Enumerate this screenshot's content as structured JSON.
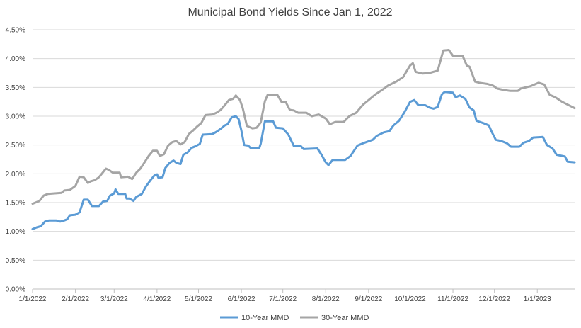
{
  "chart_data": {
    "type": "line",
    "title": "Municipal Bond Yields Since Jan 1, 2022",
    "xlabel": "",
    "ylabel": "",
    "x_ticks": [
      "1/1/2022",
      "2/1/2022",
      "3/1/2022",
      "4/1/2022",
      "5/1/2022",
      "6/1/2022",
      "7/1/2022",
      "8/1/2022",
      "9/1/2022",
      "10/1/2022",
      "11/1/2022",
      "12/1/2022",
      "1/1/2023"
    ],
    "y_ticks": [
      "0.00%",
      "0.50%",
      "1.00%",
      "1.50%",
      "2.00%",
      "2.50%",
      "3.00%",
      "3.50%",
      "4.00%",
      "4.50%"
    ],
    "ylim": [
      0,
      4.5
    ],
    "xlim": [
      "2022-01-01",
      "2023-01-28"
    ],
    "grid": "horizontal",
    "legend_position": "bottom",
    "series": [
      {
        "name": "10-Year MMD",
        "color": "#5B9BD5",
        "points": [
          [
            "2022-01-01",
            1.04
          ],
          [
            "2022-01-04",
            1.07
          ],
          [
            "2022-01-07",
            1.09
          ],
          [
            "2022-01-10",
            1.17
          ],
          [
            "2022-01-13",
            1.19
          ],
          [
            "2022-01-18",
            1.19
          ],
          [
            "2022-01-21",
            1.17
          ],
          [
            "2022-01-24",
            1.19
          ],
          [
            "2022-01-26",
            1.21
          ],
          [
            "2022-01-28",
            1.28
          ],
          [
            "2022-02-01",
            1.29
          ],
          [
            "2022-02-04",
            1.33
          ],
          [
            "2022-02-07",
            1.55
          ],
          [
            "2022-02-10",
            1.55
          ],
          [
            "2022-02-13",
            1.44
          ],
          [
            "2022-02-18",
            1.44
          ],
          [
            "2022-02-21",
            1.52
          ],
          [
            "2022-02-24",
            1.53
          ],
          [
            "2022-02-26",
            1.62
          ],
          [
            "2022-03-01",
            1.66
          ],
          [
            "2022-03-02",
            1.73
          ],
          [
            "2022-03-04",
            1.65
          ],
          [
            "2022-03-09",
            1.65
          ],
          [
            "2022-03-10",
            1.57
          ],
          [
            "2022-03-12",
            1.57
          ],
          [
            "2022-03-15",
            1.53
          ],
          [
            "2022-03-17",
            1.6
          ],
          [
            "2022-03-21",
            1.65
          ],
          [
            "2022-03-24",
            1.78
          ],
          [
            "2022-03-27",
            1.88
          ],
          [
            "2022-03-30",
            1.97
          ],
          [
            "2022-04-01",
            1.99
          ],
          [
            "2022-04-02",
            1.93
          ],
          [
            "2022-04-05",
            1.94
          ],
          [
            "2022-04-07",
            2.1
          ],
          [
            "2022-04-10",
            2.19
          ],
          [
            "2022-04-13",
            2.23
          ],
          [
            "2022-04-15",
            2.19
          ],
          [
            "2022-04-18",
            2.17
          ],
          [
            "2022-04-20",
            2.33
          ],
          [
            "2022-04-23",
            2.37
          ],
          [
            "2022-04-26",
            2.45
          ],
          [
            "2022-04-29",
            2.48
          ],
          [
            "2022-05-02",
            2.52
          ],
          [
            "2022-05-04",
            2.68
          ],
          [
            "2022-05-11",
            2.69
          ],
          [
            "2022-05-14",
            2.73
          ],
          [
            "2022-05-17",
            2.78
          ],
          [
            "2022-05-20",
            2.84
          ],
          [
            "2022-05-22",
            2.86
          ],
          [
            "2022-05-25",
            2.98
          ],
          [
            "2022-05-28",
            3.0
          ],
          [
            "2022-05-30",
            2.95
          ],
          [
            "2022-06-01",
            2.75
          ],
          [
            "2022-06-03",
            2.5
          ],
          [
            "2022-06-06",
            2.49
          ],
          [
            "2022-06-08",
            2.44
          ],
          [
            "2022-06-14",
            2.45
          ],
          [
            "2022-06-15",
            2.52
          ],
          [
            "2022-06-18",
            2.91
          ],
          [
            "2022-06-24",
            2.91
          ],
          [
            "2022-06-26",
            2.8
          ],
          [
            "2022-07-01",
            2.79
          ],
          [
            "2022-07-05",
            2.68
          ],
          [
            "2022-07-07",
            2.58
          ],
          [
            "2022-07-09",
            2.48
          ],
          [
            "2022-07-14",
            2.48
          ],
          [
            "2022-07-16",
            2.43
          ],
          [
            "2022-07-26",
            2.44
          ],
          [
            "2022-07-29",
            2.33
          ],
          [
            "2022-08-01",
            2.2
          ],
          [
            "2022-08-03",
            2.15
          ],
          [
            "2022-08-06",
            2.24
          ],
          [
            "2022-08-15",
            2.24
          ],
          [
            "2022-08-19",
            2.31
          ],
          [
            "2022-08-22",
            2.42
          ],
          [
            "2022-08-24",
            2.49
          ],
          [
            "2022-08-28",
            2.53
          ],
          [
            "2022-09-04",
            2.59
          ],
          [
            "2022-09-07",
            2.66
          ],
          [
            "2022-09-12",
            2.72
          ],
          [
            "2022-09-16",
            2.74
          ],
          [
            "2022-09-19",
            2.84
          ],
          [
            "2022-09-23",
            2.92
          ],
          [
            "2022-09-27",
            3.07
          ],
          [
            "2022-10-01",
            3.25
          ],
          [
            "2022-10-04",
            3.28
          ],
          [
            "2022-10-07",
            3.19
          ],
          [
            "2022-10-12",
            3.19
          ],
          [
            "2022-10-15",
            3.15
          ],
          [
            "2022-10-18",
            3.13
          ],
          [
            "2022-10-21",
            3.16
          ],
          [
            "2022-10-24",
            3.38
          ],
          [
            "2022-10-26",
            3.42
          ],
          [
            "2022-11-01",
            3.41
          ],
          [
            "2022-11-03",
            3.33
          ],
          [
            "2022-11-06",
            3.36
          ],
          [
            "2022-11-10",
            3.3
          ],
          [
            "2022-11-13",
            3.15
          ],
          [
            "2022-11-16",
            3.1
          ],
          [
            "2022-11-18",
            2.92
          ],
          [
            "2022-11-23",
            2.88
          ],
          [
            "2022-11-27",
            2.84
          ],
          [
            "2022-11-29",
            2.73
          ],
          [
            "2022-12-02",
            2.59
          ],
          [
            "2022-12-06",
            2.57
          ],
          [
            "2022-12-10",
            2.53
          ],
          [
            "2022-12-13",
            2.47
          ],
          [
            "2022-12-19",
            2.47
          ],
          [
            "2022-12-22",
            2.54
          ],
          [
            "2022-12-26",
            2.57
          ],
          [
            "2022-12-29",
            2.63
          ],
          [
            "2023-01-05",
            2.64
          ],
          [
            "2023-01-08",
            2.5
          ],
          [
            "2023-01-12",
            2.44
          ],
          [
            "2023-01-15",
            2.33
          ],
          [
            "2023-01-21",
            2.3
          ],
          [
            "2023-01-23",
            2.21
          ],
          [
            "2023-01-28",
            2.2
          ]
        ]
      },
      {
        "name": "30-Year MMD",
        "color": "#A5A5A5",
        "points": [
          [
            "2022-01-01",
            1.48
          ],
          [
            "2022-01-06",
            1.53
          ],
          [
            "2022-01-09",
            1.62
          ],
          [
            "2022-01-12",
            1.65
          ],
          [
            "2022-01-22",
            1.67
          ],
          [
            "2022-01-24",
            1.71
          ],
          [
            "2022-01-28",
            1.72
          ],
          [
            "2022-02-01",
            1.79
          ],
          [
            "2022-02-04",
            1.95
          ],
          [
            "2022-02-07",
            1.94
          ],
          [
            "2022-02-10",
            1.84
          ],
          [
            "2022-02-12",
            1.87
          ],
          [
            "2022-02-15",
            1.89
          ],
          [
            "2022-02-18",
            1.94
          ],
          [
            "2022-02-21",
            2.03
          ],
          [
            "2022-02-23",
            2.09
          ],
          [
            "2022-02-25",
            2.07
          ],
          [
            "2022-02-28",
            2.02
          ],
          [
            "2022-03-05",
            2.02
          ],
          [
            "2022-03-06",
            1.94
          ],
          [
            "2022-03-11",
            1.95
          ],
          [
            "2022-03-14",
            1.91
          ],
          [
            "2022-03-17",
            2.02
          ],
          [
            "2022-03-20",
            2.09
          ],
          [
            "2022-03-23",
            2.2
          ],
          [
            "2022-03-26",
            2.31
          ],
          [
            "2022-03-29",
            2.4
          ],
          [
            "2022-04-01",
            2.4
          ],
          [
            "2022-04-03",
            2.31
          ],
          [
            "2022-04-06",
            2.34
          ],
          [
            "2022-04-09",
            2.49
          ],
          [
            "2022-04-12",
            2.55
          ],
          [
            "2022-04-15",
            2.57
          ],
          [
            "2022-04-18",
            2.51
          ],
          [
            "2022-04-21",
            2.55
          ],
          [
            "2022-04-24",
            2.69
          ],
          [
            "2022-04-27",
            2.75
          ],
          [
            "2022-04-30",
            2.82
          ],
          [
            "2022-05-03",
            2.88
          ],
          [
            "2022-05-06",
            3.02
          ],
          [
            "2022-05-11",
            3.03
          ],
          [
            "2022-05-14",
            3.06
          ],
          [
            "2022-05-17",
            3.11
          ],
          [
            "2022-05-20",
            3.19
          ],
          [
            "2022-05-23",
            3.28
          ],
          [
            "2022-05-26",
            3.3
          ],
          [
            "2022-05-28",
            3.36
          ],
          [
            "2022-05-31",
            3.28
          ],
          [
            "2022-06-02",
            3.14
          ],
          [
            "2022-06-05",
            2.83
          ],
          [
            "2022-06-09",
            2.79
          ],
          [
            "2022-06-12",
            2.8
          ],
          [
            "2022-06-15",
            2.89
          ],
          [
            "2022-06-18",
            3.26
          ],
          [
            "2022-06-20",
            3.37
          ],
          [
            "2022-06-27",
            3.37
          ],
          [
            "2022-06-30",
            3.25
          ],
          [
            "2022-07-03",
            3.25
          ],
          [
            "2022-07-06",
            3.11
          ],
          [
            "2022-07-09",
            3.1
          ],
          [
            "2022-07-12",
            3.06
          ],
          [
            "2022-07-18",
            3.06
          ],
          [
            "2022-07-22",
            3.0
          ],
          [
            "2022-07-27",
            3.03
          ],
          [
            "2022-07-29",
            3.0
          ],
          [
            "2022-08-01",
            2.96
          ],
          [
            "2022-08-04",
            2.86
          ],
          [
            "2022-08-08",
            2.9
          ],
          [
            "2022-08-14",
            2.9
          ],
          [
            "2022-08-18",
            3.0
          ],
          [
            "2022-08-23",
            3.06
          ],
          [
            "2022-08-28",
            3.2
          ],
          [
            "2022-09-02",
            3.3
          ],
          [
            "2022-09-06",
            3.38
          ],
          [
            "2022-09-11",
            3.46
          ],
          [
            "2022-09-15",
            3.53
          ],
          [
            "2022-09-21",
            3.6
          ],
          [
            "2022-09-26",
            3.68
          ],
          [
            "2022-10-01",
            3.88
          ],
          [
            "2022-10-03",
            3.92
          ],
          [
            "2022-10-05",
            3.77
          ],
          [
            "2022-10-10",
            3.74
          ],
          [
            "2022-10-15",
            3.75
          ],
          [
            "2022-10-21",
            3.79
          ],
          [
            "2022-10-25",
            4.14
          ],
          [
            "2022-10-29",
            4.15
          ],
          [
            "2022-11-01",
            4.05
          ],
          [
            "2022-11-08",
            4.05
          ],
          [
            "2022-11-11",
            3.88
          ],
          [
            "2022-11-13",
            3.86
          ],
          [
            "2022-11-17",
            3.6
          ],
          [
            "2022-11-20",
            3.58
          ],
          [
            "2022-11-26",
            3.56
          ],
          [
            "2022-11-30",
            3.53
          ],
          [
            "2022-12-03",
            3.48
          ],
          [
            "2022-12-07",
            3.46
          ],
          [
            "2022-12-12",
            3.44
          ],
          [
            "2022-12-18",
            3.44
          ],
          [
            "2022-12-20",
            3.48
          ],
          [
            "2022-12-27",
            3.52
          ],
          [
            "2023-01-02",
            3.58
          ],
          [
            "2023-01-06",
            3.55
          ],
          [
            "2023-01-10",
            3.37
          ],
          [
            "2023-01-14",
            3.33
          ],
          [
            "2023-01-19",
            3.25
          ],
          [
            "2023-01-23",
            3.2
          ],
          [
            "2023-01-28",
            3.14
          ]
        ]
      }
    ]
  }
}
